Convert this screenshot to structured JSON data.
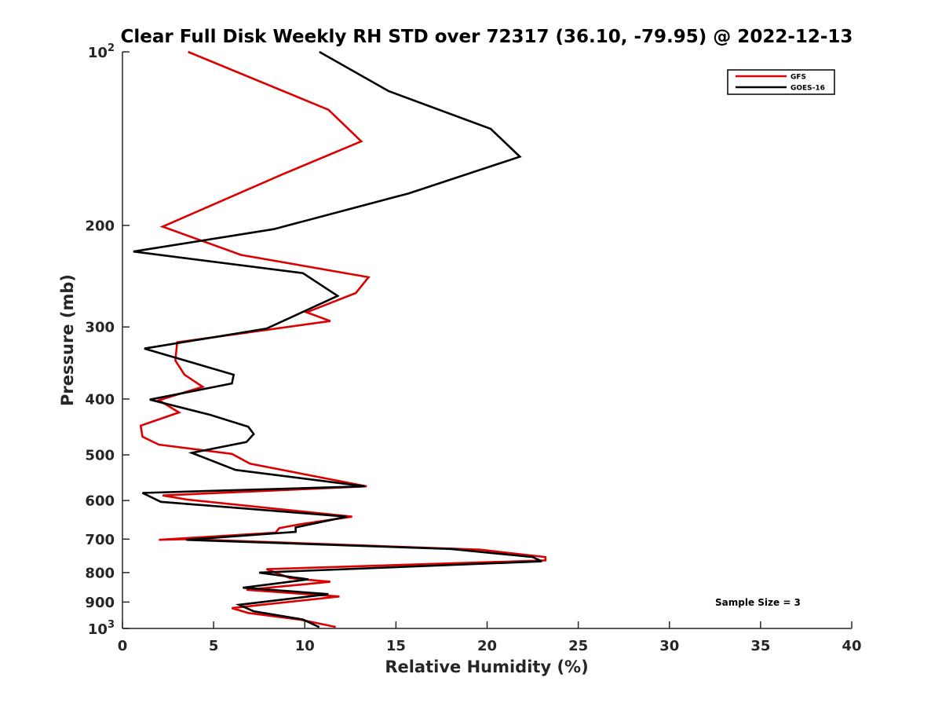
{
  "chart_data": {
    "type": "line",
    "title": "Clear Full Disk Weekly RH STD over 72317 (36.10, -79.95) @ 2022-12-13",
    "xlabel": "Relative Humidity (%)",
    "ylabel": "Pressure (mb)",
    "xlim": [
      0,
      40
    ],
    "ylim": [
      100,
      1000
    ],
    "y_scale": "log",
    "y_reversed": true,
    "x_ticks": [
      0,
      5,
      10,
      15,
      20,
      25,
      30,
      35,
      40
    ],
    "x_tick_labels": [
      "0",
      "5",
      "10",
      "15",
      "20",
      "25",
      "30",
      "35",
      "40"
    ],
    "y_ticks": [
      100,
      200,
      300,
      400,
      500,
      600,
      700,
      800,
      900,
      1000
    ],
    "y_tick_labels": [
      "200",
      "300",
      "400",
      "500",
      "600",
      "700",
      "800",
      "900"
    ],
    "y_end_labels": [
      {
        "value": 100,
        "base": "10",
        "exp": "2"
      },
      {
        "value": 1000,
        "base": "10",
        "exp": "3"
      }
    ],
    "legend_position": "top-right",
    "grid": false,
    "annotation": "Sample Size = 3",
    "series": [
      {
        "name": "GFS",
        "color": "#dd0000",
        "points": [
          [
            3.6,
            100
          ],
          [
            11.3,
            126
          ],
          [
            13.1,
            143
          ],
          [
            8.8,
            163
          ],
          [
            2.2,
            201
          ],
          [
            6.5,
            225
          ],
          [
            13.5,
            246
          ],
          [
            12.8,
            262
          ],
          [
            10.1,
            283
          ],
          [
            11.4,
            293
          ],
          [
            3.0,
            319
          ],
          [
            2.9,
            343
          ],
          [
            3.4,
            363
          ],
          [
            4.4,
            381
          ],
          [
            2.0,
            402
          ],
          [
            3.1,
            422
          ],
          [
            1.0,
            445
          ],
          [
            1.1,
            465
          ],
          [
            2.0,
            480
          ],
          [
            6.0,
            498
          ],
          [
            7.0,
            518
          ],
          [
            13.4,
            567
          ],
          [
            2.2,
            588
          ],
          [
            3.6,
            598
          ],
          [
            12.6,
            640
          ],
          [
            9.7,
            660
          ],
          [
            8.6,
            670
          ],
          [
            8.4,
            682
          ],
          [
            2.0,
            702
          ],
          [
            3.5,
            700
          ],
          [
            19.6,
            730
          ],
          [
            23.2,
            752
          ],
          [
            23.2,
            762
          ],
          [
            7.9,
            789
          ],
          [
            9.2,
            818
          ],
          [
            11.4,
            830
          ],
          [
            6.8,
            857
          ],
          [
            11.9,
            880
          ],
          [
            6.0,
            922
          ],
          [
            6.9,
            940
          ],
          [
            9.8,
            966
          ],
          [
            11.7,
            994
          ]
        ]
      },
      {
        "name": "GOES-16",
        "color": "#000000",
        "points": [
          [
            10.8,
            100
          ],
          [
            14.6,
            117
          ],
          [
            20.2,
            136
          ],
          [
            21.8,
            152
          ],
          [
            15.7,
            176
          ],
          [
            8.3,
            203
          ],
          [
            0.6,
            222
          ],
          [
            9.9,
            242
          ],
          [
            11.8,
            265
          ],
          [
            7.9,
            302
          ],
          [
            1.2,
            327
          ],
          [
            6.1,
            363
          ],
          [
            6.0,
            376
          ],
          [
            1.5,
            401
          ],
          [
            4.8,
            426
          ],
          [
            6.9,
            447
          ],
          [
            7.2,
            460
          ],
          [
            6.8,
            475
          ],
          [
            3.8,
            496
          ],
          [
            6.2,
            531
          ],
          [
            13.3,
            567
          ],
          [
            1.1,
            582
          ],
          [
            2.1,
            603
          ],
          [
            12.3,
            640
          ],
          [
            9.5,
            668
          ],
          [
            9.5,
            680
          ],
          [
            3.5,
            702
          ],
          [
            18.0,
            728
          ],
          [
            22.5,
            752
          ],
          [
            23.0,
            765
          ],
          [
            7.5,
            800
          ],
          [
            10.2,
            822
          ],
          [
            6.6,
            850
          ],
          [
            11.3,
            872
          ],
          [
            6.4,
            910
          ],
          [
            7.2,
            934
          ],
          [
            9.9,
            965
          ],
          [
            10.8,
            995
          ]
        ]
      }
    ]
  }
}
